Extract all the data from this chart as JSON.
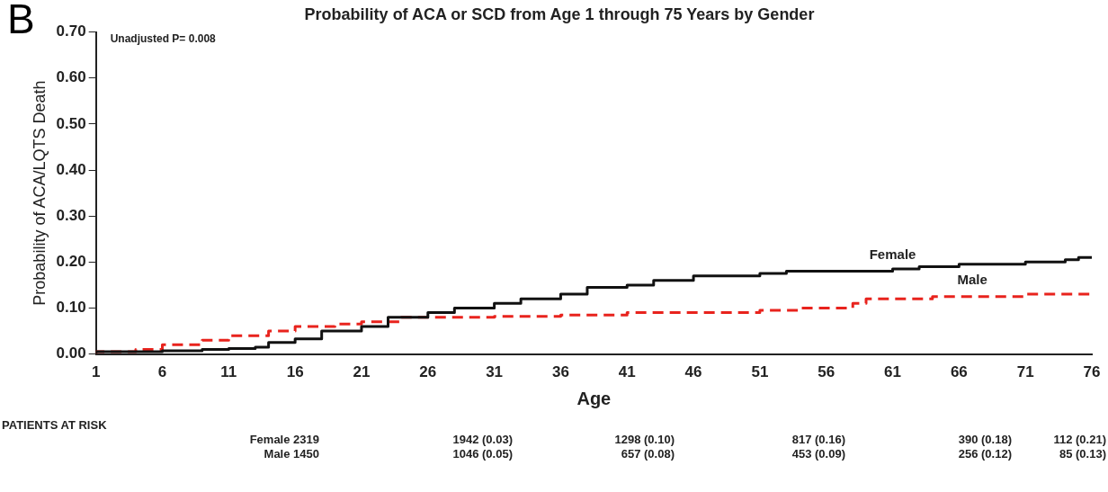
{
  "chart_data": {
    "type": "step",
    "title": "Probability of ACA or SCD from Age 1 through 75 Years by Gender",
    "xlabel": "Age",
    "ylabel": "Probability of ACA/LQTS Death",
    "xlim": [
      1,
      76
    ],
    "xticks": [
      1,
      6,
      11,
      16,
      21,
      26,
      31,
      36,
      41,
      46,
      51,
      56,
      61,
      66,
      71,
      76
    ],
    "ylim": [
      0,
      0.7
    ],
    "yticks": [
      {
        "value": 0,
        "label": "0.00"
      },
      {
        "value": 0.1,
        "label": "0.10"
      },
      {
        "value": 0.2,
        "label": "0.20"
      },
      {
        "value": 0.3,
        "label": "0.30"
      },
      {
        "value": 0.4,
        "label": "0.40"
      },
      {
        "value": 0.5,
        "label": "0.50"
      },
      {
        "value": 0.6,
        "label": "0.60"
      },
      {
        "value": 0.7,
        "label": "0.70"
      }
    ],
    "grid": false,
    "legend": false,
    "series": [
      {
        "name": "Female",
        "color": "#111111",
        "line_style": "solid",
        "x": [
          1,
          6,
          9,
          11,
          13,
          14,
          16,
          18,
          21,
          23,
          26,
          28,
          31,
          33,
          36,
          38,
          41,
          43,
          46,
          51,
          53,
          56,
          61,
          63,
          66,
          71,
          74,
          75,
          76
        ],
        "values": [
          0,
          0.005,
          0.007,
          0.01,
          0.012,
          0.015,
          0.025,
          0.033,
          0.05,
          0.06,
          0.08,
          0.09,
          0.1,
          0.11,
          0.12,
          0.13,
          0.145,
          0.15,
          0.16,
          0.17,
          0.175,
          0.18,
          0.18,
          0.185,
          0.19,
          0.195,
          0.2,
          0.205,
          0.21
        ]
      },
      {
        "name": "Male",
        "color": "#e8231d",
        "line_style": "dashed",
        "x": [
          1,
          4,
          6,
          9,
          11,
          14,
          16,
          19,
          21,
          24,
          26,
          31,
          36,
          41,
          43,
          46,
          51,
          54,
          56,
          58,
          59,
          61,
          64,
          66,
          71,
          76
        ],
        "values": [
          0,
          0.005,
          0.01,
          0.02,
          0.03,
          0.04,
          0.05,
          0.06,
          0.065,
          0.07,
          0.08,
          0.08,
          0.082,
          0.085,
          0.09,
          0.09,
          0.09,
          0.095,
          0.1,
          0.1,
          0.11,
          0.12,
          0.12,
          0.125,
          0.125,
          0.13
        ]
      }
    ],
    "annotations": [
      "B",
      "Unadjusted P= 0.008",
      "PATIENTS AT RISK",
      "Female 2319",
      "1942 (0.03)",
      "1298 (0.10)",
      "817 (0.16)",
      "390 (0.18)",
      "112 (0.21)",
      "Male 1450",
      "1046 (0.05)",
      "657 (0.08)",
      "453 (0.09)",
      "256 (0.12)",
      "85 (0.13)"
    ]
  }
}
